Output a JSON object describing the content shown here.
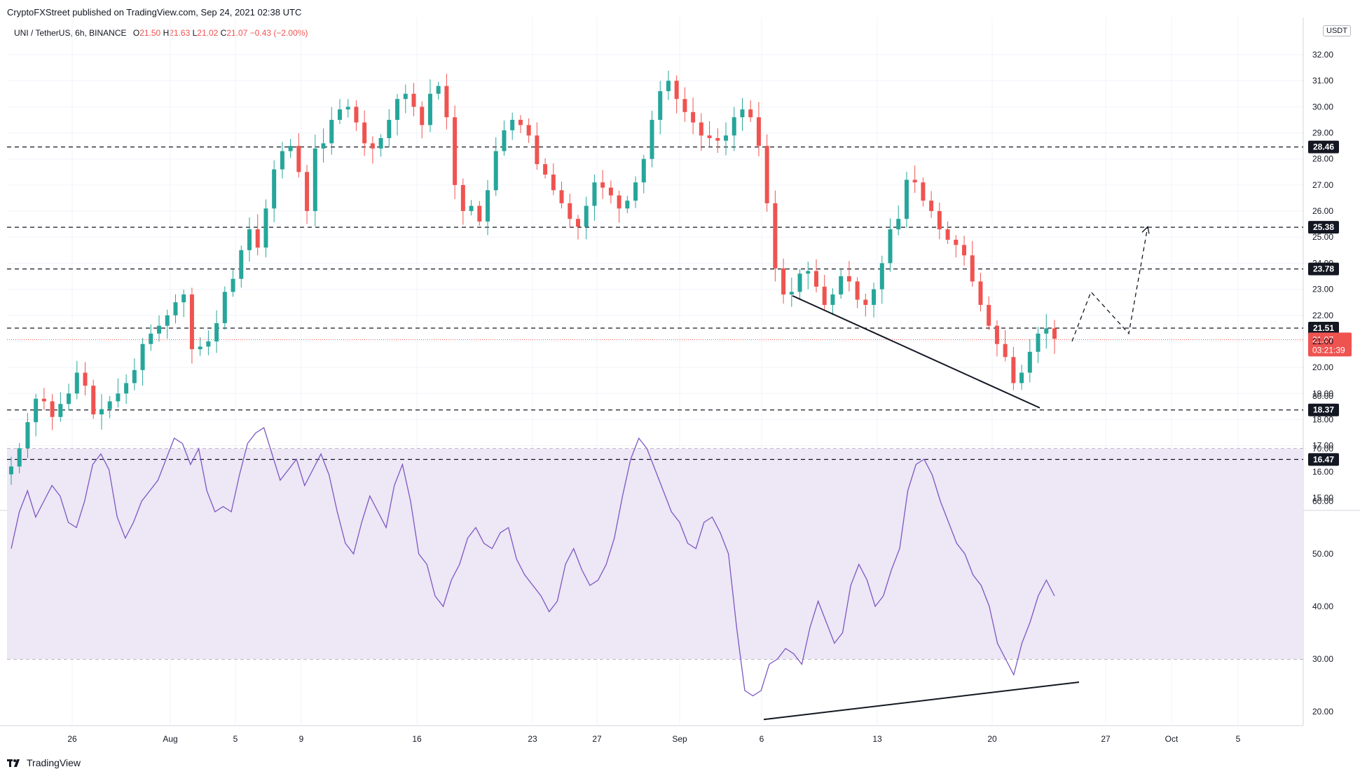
{
  "header": {
    "published": "CryptoFXStreet published on TradingView.com, Sep 24, 2021 02:38 UTC",
    "symbol": "UNI / TetherUS, 6h, BINANCE",
    "ohlc": [
      {
        "k": "O",
        "v": "21.50"
      },
      {
        "k": "H",
        "v": "21.63"
      },
      {
        "k": "L",
        "v": "21.02"
      },
      {
        "k": "C",
        "v": "21.07"
      }
    ],
    "change": "−0.43 (−2.00%)"
  },
  "currency": "USDT",
  "price_label": "21.07",
  "countdown": "03:21:39",
  "brand": "TradingView",
  "colors": {
    "up": "#26a69a",
    "down": "#ef5350",
    "rsi": "#7e57c2",
    "band": "#ede7f6"
  },
  "chart_data": [
    {
      "type": "candlestick",
      "title": "UNI / TetherUS, 6h, BINANCE",
      "y_ticks": [
        "15.00",
        "16.00",
        "17.00",
        "18.00",
        "19.00",
        "20.00",
        "21.00",
        "22.00",
        "23.00",
        "24.00",
        "25.00",
        "26.00",
        "27.00",
        "28.00",
        "29.00",
        "30.00",
        "31.00",
        "32.00"
      ],
      "ylim": [
        14.5,
        33.0
      ],
      "x_ticks": [
        "26",
        "Aug",
        "5",
        "9",
        "16",
        "23",
        "27",
        "Sep",
        "6",
        "13",
        "20",
        "27",
        "Oct",
        "5"
      ],
      "levels": [
        "28.46",
        "25.38",
        "23.78",
        "21.51",
        "18.37",
        "16.47"
      ],
      "current_price": 21.07,
      "close_path": [
        16.2,
        16.9,
        17.9,
        18.8,
        18.7,
        18.1,
        18.6,
        19.0,
        19.8,
        19.3,
        18.2,
        18.4,
        18.7,
        19.0,
        19.4,
        19.9,
        20.9,
        21.3,
        21.6,
        22.0,
        22.5,
        22.8,
        20.7,
        20.8,
        21.0,
        21.7,
        22.9,
        23.4,
        24.5,
        25.3,
        24.6,
        26.1,
        27.6,
        28.3,
        28.5,
        27.5,
        26.0,
        28.4,
        28.6,
        29.5,
        29.9,
        30.0,
        29.4,
        28.6,
        28.4,
        28.8,
        29.5,
        30.3,
        30.5,
        30.0,
        29.3,
        30.5,
        30.8,
        29.6,
        27.0,
        26.0,
        26.2,
        25.6,
        26.8,
        28.3,
        29.1,
        29.5,
        29.3,
        28.9,
        27.8,
        27.4,
        26.8,
        26.3,
        25.7,
        25.4,
        26.2,
        27.1,
        26.9,
        26.6,
        26.1,
        26.4,
        27.1,
        28.0,
        29.5,
        30.6,
        31.0,
        30.3,
        29.8,
        29.4,
        28.9,
        28.8,
        28.7,
        28.9,
        29.6,
        29.9,
        29.6,
        28.5,
        26.3,
        23.8,
        22.8,
        22.9,
        23.6,
        23.7,
        23.1,
        22.4,
        22.8,
        23.5,
        23.3,
        22.6,
        22.4,
        23.0,
        24.0,
        25.3,
        25.7,
        27.2,
        27.1,
        26.4,
        26.0,
        25.3,
        24.9,
        24.7,
        24.3,
        23.3,
        22.4,
        21.6,
        20.9,
        20.4,
        19.4,
        19.8,
        20.6,
        21.3,
        21.5,
        21.1
      ],
      "projection": [
        [
          21.0,
          0.0
        ],
        [
          22.9,
          0.9
        ],
        [
          21.3,
          2.7
        ],
        [
          25.4,
          3.6
        ]
      ]
    },
    {
      "type": "line",
      "title": "RSI",
      "y_ticks": [
        "20.00",
        "30.00",
        "40.00",
        "50.00",
        "60.00",
        "70.00",
        "80.00"
      ],
      "ylim": [
        15,
        85
      ],
      "band": [
        30,
        70
      ],
      "series": [
        {
          "values": [
            51,
            58,
            62,
            57,
            60,
            63,
            61,
            56,
            55,
            60,
            67,
            69,
            66,
            57,
            53,
            56,
            60,
            62,
            64,
            68,
            72,
            71,
            67,
            70,
            62,
            58,
            59,
            58,
            65,
            71,
            73,
            74,
            69,
            64,
            66,
            68,
            63,
            66,
            69,
            65,
            58,
            52,
            50,
            56,
            61,
            58,
            55,
            63,
            67,
            60,
            50,
            48,
            42,
            40,
            45,
            48,
            53,
            55,
            52,
            51,
            54,
            55,
            49,
            46,
            44,
            42,
            39,
            41,
            48,
            51,
            47,
            44,
            45,
            48,
            53,
            61,
            68,
            72,
            70,
            66,
            62,
            58,
            56,
            52,
            51,
            56,
            57,
            54,
            50,
            36,
            24,
            23,
            24,
            29,
            30,
            32,
            31,
            29,
            36,
            41,
            37,
            33,
            35,
            44,
            48,
            45,
            40,
            42,
            47,
            51,
            62,
            67,
            68,
            65,
            60,
            56,
            52,
            50,
            46,
            44,
            40,
            33,
            30,
            27,
            33,
            37,
            42,
            45,
            42
          ]
        }
      ]
    }
  ]
}
